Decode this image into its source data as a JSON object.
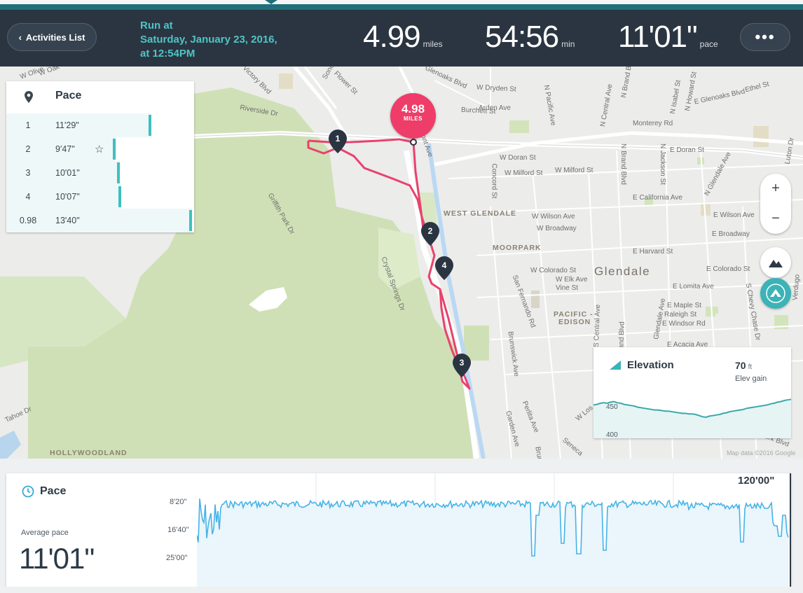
{
  "header": {
    "back_label": "Activities List",
    "run_title": [
      "Run at",
      "Saturday, January 23, 2016,",
      "at 12:54PM"
    ],
    "distance": {
      "value": "4.99",
      "unit": "miles"
    },
    "duration": {
      "value": "54:56",
      "unit": "min"
    },
    "pace": {
      "value": "11'01\"",
      "unit": "pace"
    },
    "more_label": "•••"
  },
  "pace_panel": {
    "title": "Pace",
    "splits": [
      {
        "lap": "1",
        "pace": "11'29\"",
        "best": false,
        "bar": 0.78
      },
      {
        "lap": "2",
        "pace": "9'47\"",
        "best": true,
        "bar": 0.59
      },
      {
        "lap": "3",
        "pace": "10'01\"",
        "best": false,
        "bar": 0.61
      },
      {
        "lap": "4",
        "pace": "10'07\"",
        "best": false,
        "bar": 0.62
      },
      {
        "lap": "0.98",
        "pace": "13'40\"",
        "best": false,
        "bar": 1.0
      }
    ]
  },
  "map": {
    "badge_value": "4.98",
    "badge_unit": "MILES",
    "markers": [
      "1",
      "2",
      "3",
      "4"
    ],
    "zoom_in": "+",
    "zoom_out": "−",
    "attribution": "Map data ©2016 Google",
    "labels": {
      "victory": "Victory Blvd",
      "riverside": "Riverside Dr",
      "sonora": "Sonora",
      "flower": "Flower St",
      "woak": "W Oak",
      "wolive": "W Olive",
      "glenoaks": "Glenoaks Blvd",
      "dryden": "W Dryden St",
      "arden": "Arden Ave",
      "burchett": "Burchett St",
      "pacific": "N Pacific Ave",
      "central": "N Central Ave",
      "brand": "N Brand Blvd",
      "isabel": "N Isabel St",
      "howard": "N Howard St",
      "eglenoaks": "E Glenoaks Blvd",
      "ethel": "Ethel St",
      "monterey": "Monterey Rd",
      "wdoran": "W Doran St",
      "concord": "Concord St",
      "wmilford": "W Milford St",
      "wmilford2": "W Milford St",
      "edoran": "E Doran St",
      "nbrand": "N Brand Blvd",
      "njackson": "N Jackson St",
      "nglendale": "N Glendale Ave",
      "ecalifornia": "E California Ave",
      "lutonDr": "Luton Dr",
      "wilson": "W Wilson Ave",
      "broadway": "W Broadway",
      "ewilson": "E Wilson Ave",
      "ebroadway": "E Broadway",
      "harvard": "E Harvard St",
      "colorado": "W Colorado St",
      "elk": "W Elk Ave",
      "vine": "Vine St",
      "ecolorado": "E Colorado St",
      "lomita": "E Lomita Ave",
      "maple": "E Maple St",
      "raleigh": "Raleigh St",
      "windsor": "E Windsor Rd",
      "sanfernando": "San Fernando Rd",
      "brunswick": "Brunswick Ave",
      "scentral": "S Central Ave",
      "sbrand": "S Brand Blvd",
      "sglendale": "Glendale Ave",
      "chevy": "S Chevy Chase Dr",
      "verdugo": "Verdugo",
      "acacia": "E Acacia Ave",
      "griffith": "Griffith Park Dr",
      "crystal": "Crystal Springs Dr",
      "tahoe": "Tahoe Dr",
      "garden": "Garden Ave",
      "perlita": "Perlita Ave",
      "wlos": "W Los",
      "seneca": "Seneca",
      "york": "York Blvd",
      "brunsw2": "Brun",
      "wglendale": "WEST GLENDALE",
      "moorpark": "MOORPARK",
      "pacificedison1": "PACIFIC -",
      "pacificedison2": "EDISON",
      "hollywoodland": "HOLLYWOODLAND",
      "glendale": "Glendale",
      "fontAve": "Font Ave"
    }
  },
  "elevation": {
    "title": "Elevation",
    "gain_value": "70",
    "gain_unit": "ft",
    "gain_label": "Elev gain",
    "ticks": [
      "450",
      "400"
    ],
    "profile": [
      452,
      453,
      455,
      456,
      455,
      457,
      458,
      456,
      455,
      453,
      452,
      451,
      450,
      448,
      447,
      446,
      445,
      444,
      443,
      443,
      442,
      441,
      441,
      440,
      439,
      438,
      437,
      437,
      436,
      436,
      435,
      433,
      431,
      430,
      432,
      433,
      434,
      435,
      437,
      438,
      440,
      441,
      442,
      443,
      444,
      446,
      447,
      448,
      449,
      450,
      451,
      452,
      454,
      455,
      457,
      458,
      460,
      461,
      462
    ]
  },
  "pace_chart": {
    "title": "Pace",
    "avg_label": "Average pace",
    "avg_value": "11'01\"",
    "max_label": "120'00\"",
    "y_ticks": [
      "8'20\"",
      "16'40\"",
      "25'00\""
    ]
  },
  "colors": {
    "accent": "#3bb3b7",
    "route": "#e8426d",
    "header": "#2b3541",
    "title": "#4fc4c7"
  }
}
